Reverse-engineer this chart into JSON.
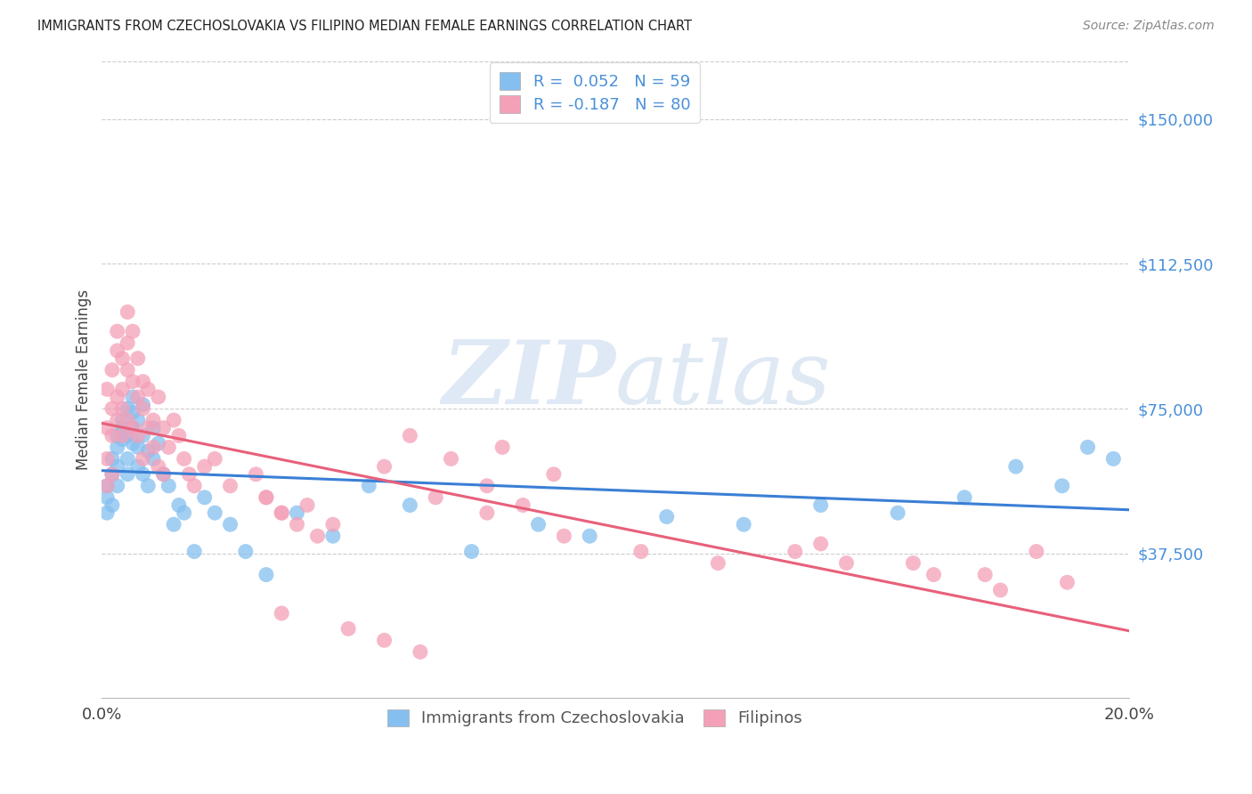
{
  "title": "IMMIGRANTS FROM CZECHOSLOVAKIA VS FILIPINO MEDIAN FEMALE EARNINGS CORRELATION CHART",
  "source": "Source: ZipAtlas.com",
  "ylabel": "Median Female Earnings",
  "y_ticks": [
    37500,
    75000,
    112500,
    150000
  ],
  "y_tick_labels": [
    "$37,500",
    "$75,000",
    "$112,500",
    "$150,000"
  ],
  "xlim": [
    0.0,
    0.2
  ],
  "ylim": [
    0,
    165000
  ],
  "legend_label1": "Immigrants from Czechoslovakia",
  "legend_label2": "Filipinos",
  "r1": "0.052",
  "n1": "59",
  "r2": "-0.187",
  "n2": "80",
  "color_blue": "#85bff0",
  "color_pink": "#f4a0b8",
  "line_blue": "#3a7fd5",
  "line_pink": "#e8607a",
  "background_color": "#ffffff",
  "watermark_zip": "ZIP",
  "watermark_atlas": "atlas",
  "czech_x": [
    0.001,
    0.001,
    0.001,
    0.002,
    0.002,
    0.002,
    0.003,
    0.003,
    0.003,
    0.003,
    0.004,
    0.004,
    0.004,
    0.005,
    0.005,
    0.005,
    0.005,
    0.006,
    0.006,
    0.006,
    0.006,
    0.007,
    0.007,
    0.007,
    0.008,
    0.008,
    0.008,
    0.009,
    0.009,
    0.01,
    0.01,
    0.011,
    0.012,
    0.013,
    0.014,
    0.015,
    0.016,
    0.018,
    0.02,
    0.022,
    0.025,
    0.028,
    0.032,
    0.038,
    0.045,
    0.052,
    0.06,
    0.072,
    0.085,
    0.095,
    0.11,
    0.125,
    0.14,
    0.155,
    0.168,
    0.178,
    0.187,
    0.192,
    0.197
  ],
  "czech_y": [
    52000,
    48000,
    55000,
    58000,
    50000,
    62000,
    65000,
    60000,
    68000,
    55000,
    70000,
    67000,
    72000,
    75000,
    68000,
    62000,
    58000,
    74000,
    70000,
    66000,
    78000,
    72000,
    65000,
    60000,
    76000,
    68000,
    58000,
    64000,
    55000,
    70000,
    62000,
    66000,
    58000,
    55000,
    45000,
    50000,
    48000,
    38000,
    52000,
    48000,
    45000,
    38000,
    32000,
    48000,
    42000,
    55000,
    50000,
    38000,
    45000,
    42000,
    47000,
    45000,
    50000,
    48000,
    52000,
    60000,
    55000,
    65000,
    62000
  ],
  "filipino_x": [
    0.001,
    0.001,
    0.001,
    0.001,
    0.002,
    0.002,
    0.002,
    0.002,
    0.003,
    0.003,
    0.003,
    0.003,
    0.004,
    0.004,
    0.004,
    0.004,
    0.005,
    0.005,
    0.005,
    0.005,
    0.006,
    0.006,
    0.006,
    0.007,
    0.007,
    0.007,
    0.008,
    0.008,
    0.008,
    0.009,
    0.009,
    0.01,
    0.01,
    0.011,
    0.011,
    0.012,
    0.012,
    0.013,
    0.014,
    0.015,
    0.016,
    0.017,
    0.018,
    0.02,
    0.022,
    0.025,
    0.03,
    0.032,
    0.035,
    0.04,
    0.045,
    0.055,
    0.065,
    0.075,
    0.09,
    0.105,
    0.12,
    0.14,
    0.158,
    0.172,
    0.182,
    0.188,
    0.078,
    0.088,
    0.032,
    0.035,
    0.038,
    0.042,
    0.06,
    0.068,
    0.075,
    0.082,
    0.035,
    0.048,
    0.055,
    0.062,
    0.135,
    0.145,
    0.162,
    0.175
  ],
  "filipino_y": [
    62000,
    70000,
    55000,
    80000,
    68000,
    75000,
    58000,
    85000,
    90000,
    78000,
    95000,
    72000,
    88000,
    80000,
    68000,
    75000,
    100000,
    85000,
    72000,
    92000,
    95000,
    82000,
    70000,
    78000,
    88000,
    68000,
    75000,
    82000,
    62000,
    70000,
    80000,
    72000,
    65000,
    78000,
    60000,
    70000,
    58000,
    65000,
    72000,
    68000,
    62000,
    58000,
    55000,
    60000,
    62000,
    55000,
    58000,
    52000,
    48000,
    50000,
    45000,
    60000,
    52000,
    48000,
    42000,
    38000,
    35000,
    40000,
    35000,
    32000,
    38000,
    30000,
    65000,
    58000,
    52000,
    48000,
    45000,
    42000,
    68000,
    62000,
    55000,
    50000,
    22000,
    18000,
    15000,
    12000,
    38000,
    35000,
    32000,
    28000
  ]
}
